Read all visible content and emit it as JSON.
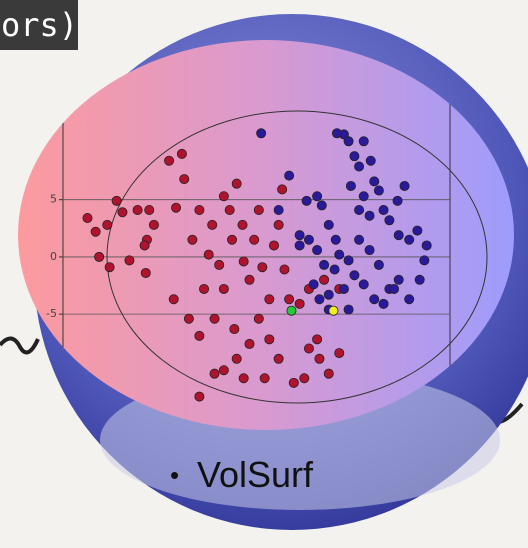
{
  "title_fragment": "ors)",
  "caption": "VolSurf",
  "chart_data": {
    "type": "scatter",
    "xlim": [
      -20,
      13.2
    ],
    "ylim": [
      -12.5,
      11
    ],
    "yticks": [
      -5,
      0,
      5
    ],
    "grid": true,
    "series": [
      {
        "color": "#b0132e",
        "x": [
          -17.9,
          -17.2,
          -16.2,
          -16.9,
          -16.0,
          -15.4,
          -14.9,
          -13.6,
          -12.6,
          -12.8,
          -12.2,
          -12.9,
          -10.9,
          -9.8,
          -9.6,
          -10.3,
          -8.9,
          -8.3,
          -7.9,
          -7.5,
          -7.2,
          -6.6,
          -6.2,
          -5.7,
          -5.5,
          -5.1,
          -4.6,
          -4.5,
          -4.0,
          -3.6,
          -3.2,
          -2.9,
          -2.3,
          -1.9,
          -1.5,
          -1.0,
          -0.6,
          -1.2,
          -6.2,
          -7.0,
          -5.3,
          -4.0,
          -5.1,
          -3.2,
          -2.3,
          -6.2,
          -7.0,
          -8.3,
          -4.5,
          -1.5,
          -0.2,
          0.7,
          1.1,
          1.8,
          2.0,
          2.8,
          3.7,
          0.3,
          1.1,
          -2.7,
          2.4,
          3.7,
          -8.3,
          -9.2,
          -10.5,
          -13.0,
          -14.3
        ],
        "y": [
          3.4,
          2.2,
          2.8,
          0,
          -0.9,
          4.9,
          3.9,
          4.1,
          4.1,
          1.5,
          2.8,
          -1.4,
          8.4,
          9.0,
          6.8,
          4.3,
          1.5,
          4.1,
          -2.8,
          0.2,
          2.8,
          -0.7,
          5.3,
          4.1,
          1.5,
          6.4,
          2.8,
          -0.4,
          -2.0,
          1.5,
          4.1,
          -0.9,
          -3.7,
          1.0,
          2.8,
          -1.1,
          -3.7,
          5.9,
          -2.8,
          -5.4,
          -6.3,
          -7.6,
          -8.9,
          -5.4,
          -7.2,
          -9.9,
          -10.2,
          -12.2,
          -10.6,
          -8.9,
          -11.0,
          -10.6,
          -8.0,
          -7.2,
          -8.9,
          -10.2,
          -8.4,
          -4.1,
          -2.8,
          -10.6,
          -2.0,
          -2.8,
          -6.9,
          -5.4,
          -3.7,
          1.0,
          -0.3
        ]
      },
      {
        "color": "#2a1a9a",
        "x": [
          -3.0,
          -0.6,
          0.3,
          0.9,
          1.8,
          2.2,
          2.8,
          3.4,
          4.1,
          4.5,
          5.0,
          5.4,
          4.7,
          5.8,
          6.7,
          7.1,
          7.5,
          8.0,
          8.7,
          9.3,
          8.8,
          9.7,
          10.4,
          11.0,
          11.2,
          10.6,
          9.7,
          8.8,
          8.0,
          7.1,
          6.3,
          5.4,
          4.5,
          3.7,
          3.3,
          2.4,
          1.8,
          1.1,
          1.5,
          2.8,
          4.1,
          5.0,
          5.8,
          6.7,
          7.5,
          8.4,
          4.5,
          2.8,
          2.0,
          3.5,
          5.4,
          6.3,
          -1.5,
          0.3,
          5.8,
          6.4
        ],
        "y": [
          10.8,
          7.1,
          1.0,
          4.9,
          5.3,
          4.5,
          2.8,
          1.5,
          10.7,
          10.1,
          8.8,
          7.9,
          6.2,
          5.3,
          6.6,
          5.8,
          4.1,
          3.2,
          4.9,
          6.2,
          1.9,
          1.5,
          2.3,
          -0.3,
          1.0,
          -2.0,
          -3.7,
          -2.0,
          -2.8,
          -0.7,
          0.6,
          1.5,
          -0.3,
          0.2,
          -1.1,
          -0.7,
          0.6,
          1.5,
          -2.4,
          -3.3,
          -2.8,
          -1.6,
          -2.4,
          -3.7,
          -4.1,
          -2.8,
          -4.6,
          -4.6,
          -3.7,
          10.8,
          4.1,
          3.6,
          4.1,
          1.9,
          10.1,
          8.4
        ]
      },
      {
        "color": "#22cc33",
        "x": [
          -0.4
        ],
        "y": [
          -4.7
        ]
      },
      {
        "color": "#f2ee22",
        "x": [
          3.2
        ],
        "y": [
          -4.7
        ]
      }
    ]
  }
}
